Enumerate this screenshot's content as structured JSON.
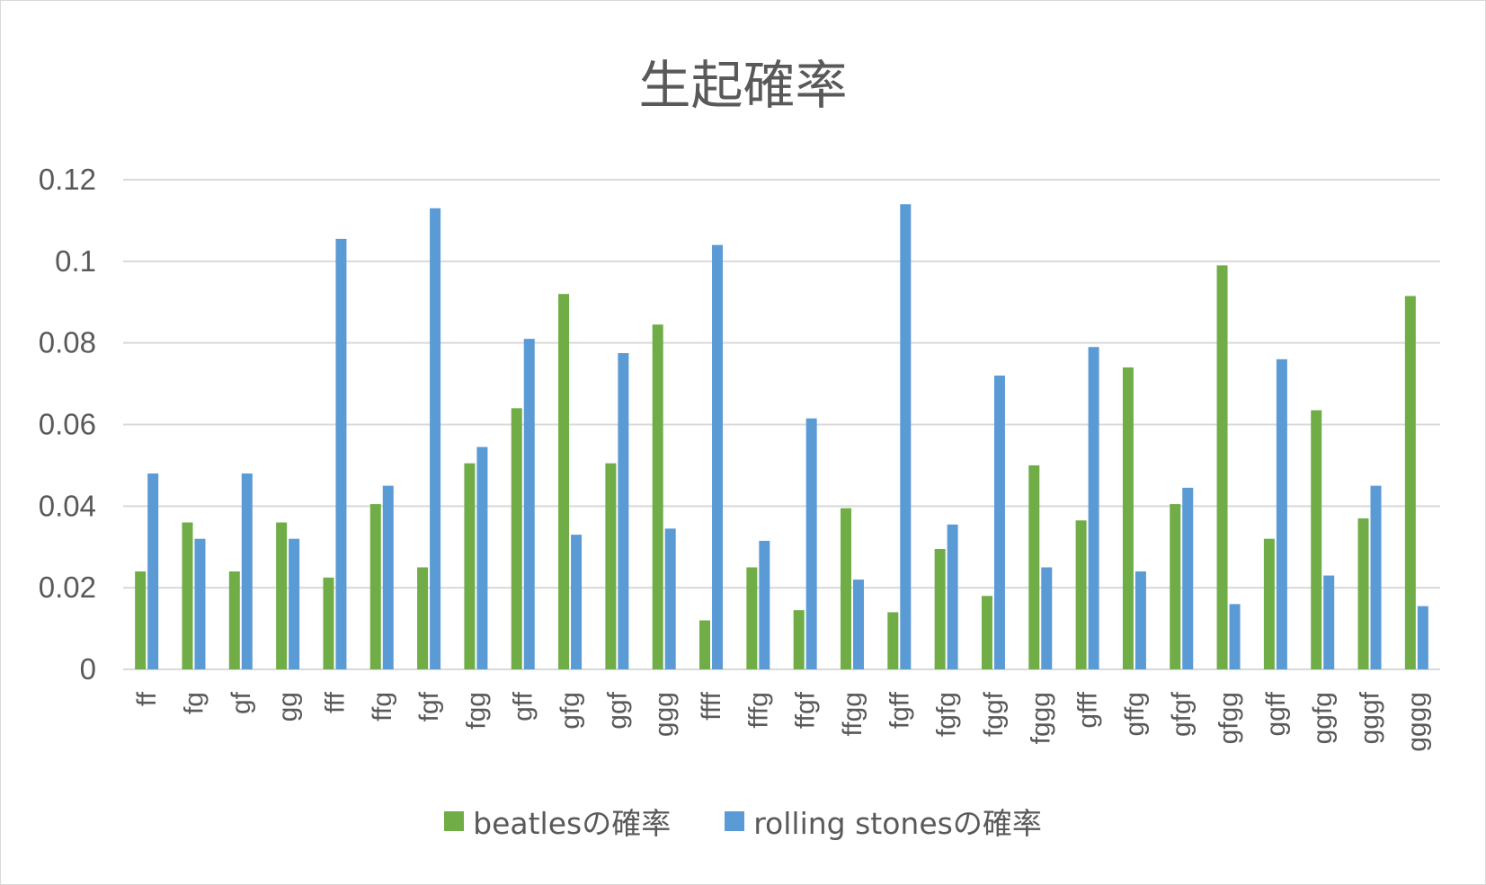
{
  "chart_data": {
    "type": "bar",
    "title": "生起確率",
    "xlabel": "",
    "ylabel": "",
    "ylim": [
      0,
      0.12
    ],
    "yticks": [
      "0",
      "0.02",
      "0.04",
      "0.06",
      "0.08",
      "0.1",
      "0.12"
    ],
    "grid": true,
    "legend_position": "bottom",
    "categories": [
      "ff",
      "fg",
      "gf",
      "gg",
      "fff",
      "ffg",
      "fgf",
      "fgg",
      "gff",
      "gfg",
      "ggf",
      "ggg",
      "ffff",
      "fffg",
      "ffgf",
      "ffgg",
      "fgff",
      "fgfg",
      "fggf",
      "fggg",
      "gfff",
      "gffg",
      "gfgf",
      "gfgg",
      "ggff",
      "ggfg",
      "gggf",
      "gggg"
    ],
    "series": [
      {
        "name": "beatlesの確率",
        "color": "#70ad47",
        "values": [
          0.024,
          0.036,
          0.024,
          0.036,
          0.0225,
          0.0405,
          0.025,
          0.0505,
          0.064,
          0.092,
          0.0505,
          0.0845,
          0.012,
          0.025,
          0.0145,
          0.0395,
          0.014,
          0.0295,
          0.018,
          0.05,
          0.0365,
          0.074,
          0.0405,
          0.099,
          0.032,
          0.0635,
          0.037,
          0.0915
        ]
      },
      {
        "name": "rolling stonesの確率",
        "color": "#5b9bd5",
        "values": [
          0.048,
          0.032,
          0.048,
          0.032,
          0.1055,
          0.045,
          0.113,
          0.0545,
          0.081,
          0.033,
          0.0775,
          0.0345,
          0.104,
          0.0315,
          0.0615,
          0.022,
          0.114,
          0.0355,
          0.072,
          0.025,
          0.079,
          0.024,
          0.0445,
          0.016,
          0.076,
          0.023,
          0.045,
          0.0155
        ]
      }
    ]
  }
}
